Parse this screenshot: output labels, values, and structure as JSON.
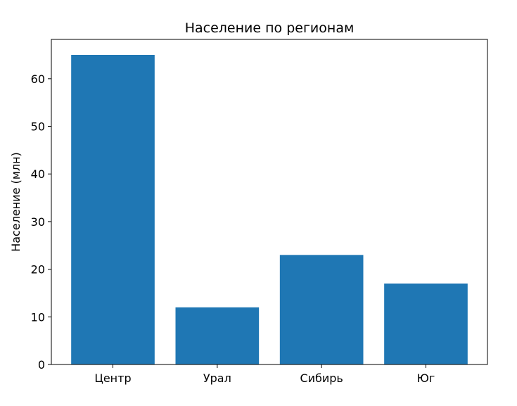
{
  "chart_data": {
    "type": "bar",
    "title": "Население по регионам",
    "xlabel": "",
    "ylabel": "Население (млн)",
    "categories": [
      "Центр",
      "Урал",
      "Сибирь",
      "Юг"
    ],
    "values": [
      65,
      12,
      23,
      17
    ],
    "ylim": [
      0,
      68.25
    ],
    "yticks": [
      0,
      10,
      20,
      30,
      40,
      50,
      60
    ],
    "grid": false,
    "bar_color": "#1f77b4"
  }
}
